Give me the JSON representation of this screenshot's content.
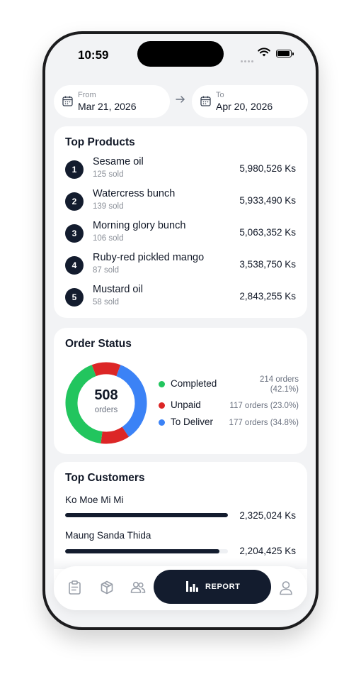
{
  "status_bar": {
    "time": "10:59"
  },
  "date_range": {
    "from_label": "From",
    "from_value": "Mar 21, 2026",
    "to_label": "To",
    "to_value": "Apr 20, 2026"
  },
  "top_products": {
    "title": "Top Products",
    "items": [
      {
        "rank": "1",
        "name": "Sesame oil",
        "sold": "125 sold",
        "amount": "5,980,526 Ks"
      },
      {
        "rank": "2",
        "name": "Watercress bunch",
        "sold": "139 sold",
        "amount": "5,933,490 Ks"
      },
      {
        "rank": "3",
        "name": "Morning glory bunch",
        "sold": "106 sold",
        "amount": "5,063,352 Ks"
      },
      {
        "rank": "4",
        "name": "Ruby-red pickled mango",
        "sold": "87 sold",
        "amount": "3,538,750 Ks"
      },
      {
        "rank": "5",
        "name": "Mustard oil",
        "sold": "58 sold",
        "amount": "2,843,255 Ks"
      }
    ]
  },
  "order_status": {
    "title": "Order Status",
    "total": "508",
    "total_label": "orders",
    "segments": [
      {
        "name": "Completed",
        "count": 214,
        "detail_line1": "214 orders",
        "detail_line2": "(42.1%)",
        "detail": "",
        "color": "#22c55e"
      },
      {
        "name": "Unpaid",
        "count": 117,
        "detail_line1": "",
        "detail_line2": "",
        "detail": "117 orders (23.0%)",
        "color": "#dc2626"
      },
      {
        "name": "To Deliver",
        "count": 177,
        "detail_line1": "",
        "detail_line2": "",
        "detail": "177 orders (34.8%)",
        "color": "#3b82f6"
      }
    ]
  },
  "top_customers": {
    "title": "Top Customers",
    "items": [
      {
        "name": "Ko Moe Mi Mi",
        "amount": "2,325,024 Ks",
        "fraction": 1.0
      },
      {
        "name": "Maung Sanda Thida",
        "amount": "2,204,425 Ks",
        "fraction": 0.948
      }
    ]
  },
  "nav": {
    "items": [
      {
        "icon": "clipboard-icon"
      },
      {
        "icon": "box-icon"
      },
      {
        "icon": "users-icon"
      },
      {
        "icon": "bar-chart-icon",
        "label": "REPORT",
        "active": true
      },
      {
        "icon": "person-icon"
      }
    ],
    "active_color": "#131c2e",
    "icon_color": "#9aa0aa"
  }
}
